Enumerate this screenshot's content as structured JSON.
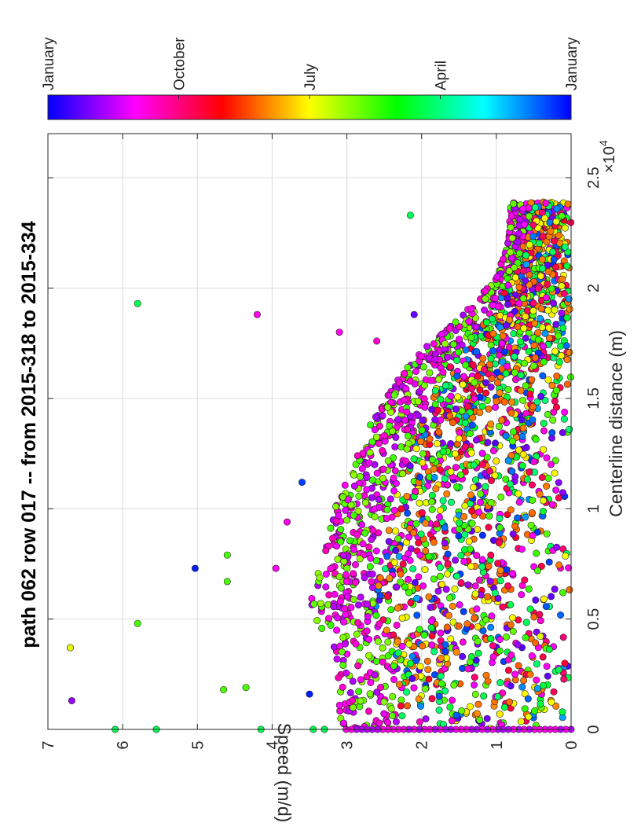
{
  "chart_data": {
    "type": "scatter",
    "title": "path 062 row 017  -- from 2015-318 to 2015-334",
    "xlabel": "Centerline distance (m)",
    "ylabel": "Speed (m/d)",
    "x_exponent_label": "×10",
    "x_exponent_power": "4",
    "x_multiplier": 10000,
    "xlim": [
      0,
      27000
    ],
    "ylim": [
      0,
      7
    ],
    "x_ticks": [
      0,
      5000,
      10000,
      15000,
      20000,
      25000
    ],
    "x_tick_labels": [
      "0",
      "0.5",
      "1",
      "1.5",
      "2",
      "2.5"
    ],
    "y_ticks": [
      0,
      1,
      2,
      3,
      4,
      5,
      6,
      7
    ],
    "y_tick_labels": [
      "0",
      "1",
      "2",
      "3",
      "4",
      "5",
      "6",
      "7"
    ],
    "grid": true,
    "orientation": "rotated 90 degrees counter-clockwise",
    "colorbar": {
      "placement": "top",
      "labels": [
        "January",
        "October",
        "July",
        "April",
        "January"
      ],
      "label_positions_month_fraction": [
        0,
        0.25,
        0.5,
        0.75,
        1
      ],
      "colormap": "hsv reversed (blue-magenta-red-orange-yellow-green-cyan-blue)"
    },
    "colormap_stops": [
      "#0000ff",
      "#8000ff",
      "#ff00ff",
      "#ff0080",
      "#ff0000",
      "#ff8000",
      "#ffff00",
      "#80ff00",
      "#00ff00",
      "#00ff80",
      "#00ffff",
      "#0080ff",
      "#0000ff"
    ],
    "dense_envelope": {
      "x": [
        0,
        2000,
        4000,
        5000,
        6000,
        8000,
        10000,
        12000,
        14000,
        16000,
        17500,
        19000,
        20500,
        22000,
        23900
      ],
      "upper_speed": [
        3.1,
        3.1,
        3.2,
        3.5,
        3.5,
        3.3,
        3.2,
        2.9,
        2.7,
        2.3,
        1.9,
        1.4,
        1.0,
        0.85,
        0.8
      ]
    },
    "outliers": [
      {
        "x": 1300,
        "y": 6.68,
        "c": 0.1
      },
      {
        "x": 3700,
        "y": 6.7,
        "c": 0.52
      },
      {
        "x": 4800,
        "y": 5.8,
        "c": 0.62
      },
      {
        "x": 19300,
        "y": 5.8,
        "c": 0.72
      },
      {
        "x": 7300,
        "y": 5.03,
        "c": 0.98
      },
      {
        "x": 7900,
        "y": 4.6,
        "c": 0.62
      },
      {
        "x": 6700,
        "y": 4.6,
        "c": 0.62
      },
      {
        "x": 1800,
        "y": 4.65,
        "c": 0.62
      },
      {
        "x": 1900,
        "y": 4.35,
        "c": 0.62
      },
      {
        "x": 18800,
        "y": 4.2,
        "c": 0.18
      },
      {
        "x": 0,
        "y": 6.1,
        "c": 0.72
      },
      {
        "x": 0,
        "y": 5.55,
        "c": 0.72
      },
      {
        "x": 0,
        "y": 4.15,
        "c": 0.72
      },
      {
        "x": 0,
        "y": 3.45,
        "c": 0.72
      },
      {
        "x": 0,
        "y": 3.3,
        "c": 0.72
      },
      {
        "x": 1600,
        "y": 3.5,
        "c": 0.98
      },
      {
        "x": 11200,
        "y": 3.6,
        "c": 0.96
      },
      {
        "x": 7300,
        "y": 3.95,
        "c": 0.18
      },
      {
        "x": 9400,
        "y": 3.8,
        "c": 0.18
      },
      {
        "x": 23300,
        "y": 2.15,
        "c": 0.72
      },
      {
        "x": 18800,
        "y": 2.1,
        "c": 0.07
      },
      {
        "x": 18000,
        "y": 3.1,
        "c": 0.18
      },
      {
        "x": 17600,
        "y": 2.6,
        "c": 0.2
      }
    ],
    "n_dense_points": 2600
  }
}
